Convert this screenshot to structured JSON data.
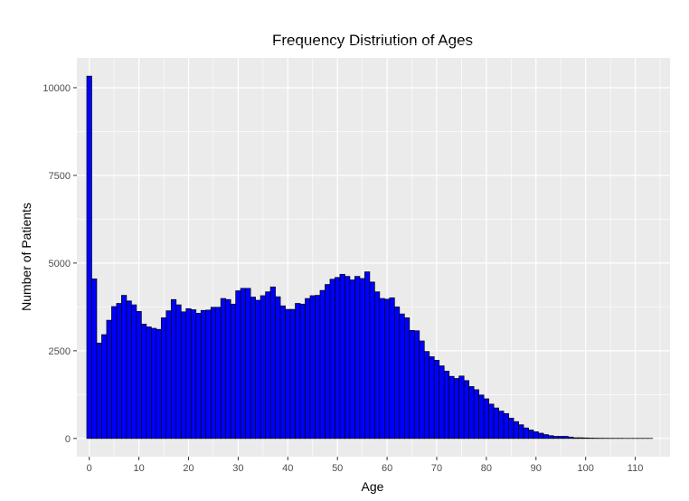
{
  "chart_data": {
    "type": "bar",
    "title": "Frequency Distriution of Ages",
    "xlabel": "Age",
    "ylabel": "Number of Patients",
    "xlim": [
      -2.5,
      117
    ],
    "ylim": [
      -520,
      10850
    ],
    "x_ticks": [
      0,
      10,
      20,
      30,
      40,
      50,
      60,
      70,
      80,
      90,
      100,
      110
    ],
    "y_ticks": [
      0,
      2500,
      5000,
      7500,
      10000
    ],
    "grid": true,
    "bin_width": 1,
    "bar_fill": "#0000ff",
    "bar_stroke": "#000000",
    "panel_background": "#ebebeb",
    "grid_color": "#ffffff",
    "x": [
      0,
      1,
      2,
      3,
      4,
      5,
      6,
      7,
      8,
      9,
      10,
      11,
      12,
      13,
      14,
      15,
      16,
      17,
      18,
      19,
      20,
      21,
      22,
      23,
      24,
      25,
      26,
      27,
      28,
      29,
      30,
      31,
      32,
      33,
      34,
      35,
      36,
      37,
      38,
      39,
      40,
      41,
      42,
      43,
      44,
      45,
      46,
      47,
      48,
      49,
      50,
      51,
      52,
      53,
      54,
      55,
      56,
      57,
      58,
      59,
      60,
      61,
      62,
      63,
      64,
      65,
      66,
      67,
      68,
      69,
      70,
      71,
      72,
      73,
      74,
      75,
      76,
      77,
      78,
      79,
      80,
      81,
      82,
      83,
      84,
      85,
      86,
      87,
      88,
      89,
      90,
      91,
      92,
      93,
      94,
      95,
      96,
      97,
      98,
      99,
      100,
      101,
      102,
      103,
      104,
      105,
      106,
      107,
      108,
      109,
      110,
      111,
      112,
      113
    ],
    "values": [
      10330,
      4550,
      2720,
      2960,
      3370,
      3760,
      3850,
      4080,
      3920,
      3810,
      3620,
      3260,
      3180,
      3140,
      3110,
      3440,
      3640,
      3960,
      3810,
      3610,
      3700,
      3670,
      3570,
      3650,
      3660,
      3740,
      3740,
      3990,
      3960,
      3830,
      4210,
      4280,
      4280,
      4030,
      3940,
      4070,
      4180,
      4320,
      4040,
      3780,
      3680,
      3680,
      3850,
      3830,
      3990,
      4070,
      4080,
      4220,
      4390,
      4540,
      4590,
      4680,
      4620,
      4520,
      4620,
      4560,
      4750,
      4460,
      4180,
      3990,
      3970,
      4010,
      3750,
      3550,
      3440,
      3080,
      3070,
      2780,
      2480,
      2330,
      2230,
      2070,
      1920,
      1770,
      1710,
      1780,
      1650,
      1480,
      1390,
      1240,
      1130,
      980,
      870,
      780,
      710,
      580,
      480,
      390,
      300,
      240,
      190,
      150,
      110,
      80,
      60,
      60,
      60,
      40,
      20,
      20,
      15,
      10,
      8,
      6,
      5,
      4,
      3,
      3,
      2,
      2,
      2,
      2,
      2,
      2
    ]
  }
}
